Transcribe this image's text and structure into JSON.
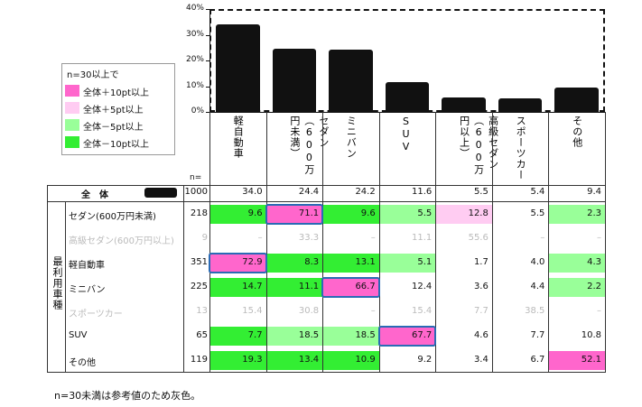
{
  "chart_data": {
    "type": "bar",
    "values": [
      34.0,
      24.4,
      24.2,
      11.6,
      5.5,
      5.4,
      9.4
    ],
    "color": "#111111",
    "ylim": [
      0,
      40
    ],
    "yticks": [
      {
        "value": 0,
        "label": "0%"
      },
      {
        "value": 10,
        "label": "10%"
      },
      {
        "value": 20,
        "label": "20%"
      },
      {
        "value": 30,
        "label": "30%"
      },
      {
        "value": 40,
        "label": "40%"
      }
    ]
  },
  "legend": {
    "title": "n=30以上で",
    "items": [
      {
        "label": "全体＋10pt以上",
        "color": "#ff66cc"
      },
      {
        "label": "全体＋5pt以上",
        "color": "#ffccf2"
      },
      {
        "label": "全体－5pt以上",
        "color": "#99ff99"
      },
      {
        "label": "全体－10pt以上",
        "color": "#33ee33"
      }
    ]
  },
  "table": {
    "n_label": "n=",
    "group_label": "最利用車種",
    "columns": [
      "軽自動車",
      "セダン（600万円未満）",
      "ミニバン",
      "SUV",
      "高級セダン（600万円以上）",
      "スポーツカー",
      "その他"
    ],
    "total": {
      "label": "全　体",
      "n": "1000",
      "cells": [
        "34.0",
        "24.4",
        "24.2",
        "11.6",
        "5.5",
        "5.4",
        "9.4"
      ]
    },
    "rows": [
      {
        "label": "セダン(600万円未満)",
        "n": "218",
        "cells": [
          "9.6",
          "71.1",
          "9.6",
          "5.5",
          "12.8",
          "5.5",
          "2.3"
        ],
        "shade": [
          3,
          0,
          3,
          2,
          1,
          null,
          2
        ],
        "boxed": 1,
        "muted": false
      },
      {
        "label": "高級セダン(600万円以上)",
        "n": "9",
        "cells": [
          "–",
          "33.3",
          "–",
          "11.1",
          "55.6",
          "–",
          "–"
        ],
        "shade": [
          null,
          null,
          null,
          null,
          null,
          null,
          null
        ],
        "boxed": null,
        "muted": true
      },
      {
        "label": "軽自動車",
        "n": "351",
        "cells": [
          "72.9",
          "8.3",
          "13.1",
          "5.1",
          "1.7",
          "4.0",
          "4.3"
        ],
        "shade": [
          0,
          3,
          3,
          2,
          null,
          null,
          2
        ],
        "boxed": 0,
        "muted": false
      },
      {
        "label": "ミニバン",
        "n": "225",
        "cells": [
          "14.7",
          "11.1",
          "66.7",
          "12.4",
          "3.6",
          "4.4",
          "2.2"
        ],
        "shade": [
          3,
          3,
          0,
          null,
          null,
          null,
          2
        ],
        "boxed": 2,
        "muted": false
      },
      {
        "label": "スポーツカー",
        "n": "13",
        "cells": [
          "15.4",
          "30.8",
          "–",
          "15.4",
          "7.7",
          "38.5",
          "–"
        ],
        "shade": [
          null,
          null,
          null,
          null,
          null,
          null,
          null
        ],
        "boxed": null,
        "muted": true
      },
      {
        "label": "SUV",
        "n": "65",
        "cells": [
          "7.7",
          "18.5",
          "18.5",
          "67.7",
          "4.6",
          "7.7",
          "10.8"
        ],
        "shade": [
          3,
          2,
          2,
          0,
          null,
          null,
          null
        ],
        "boxed": 3,
        "muted": false
      },
      {
        "label": "その他",
        "n": "119",
        "cells": [
          "19.3",
          "13.4",
          "10.9",
          "9.2",
          "3.4",
          "6.7",
          "52.1"
        ],
        "shade": [
          3,
          3,
          3,
          null,
          null,
          null,
          0
        ],
        "boxed": null,
        "muted": false
      }
    ]
  },
  "footnote": "n=30未満は参考値のため灰色。"
}
